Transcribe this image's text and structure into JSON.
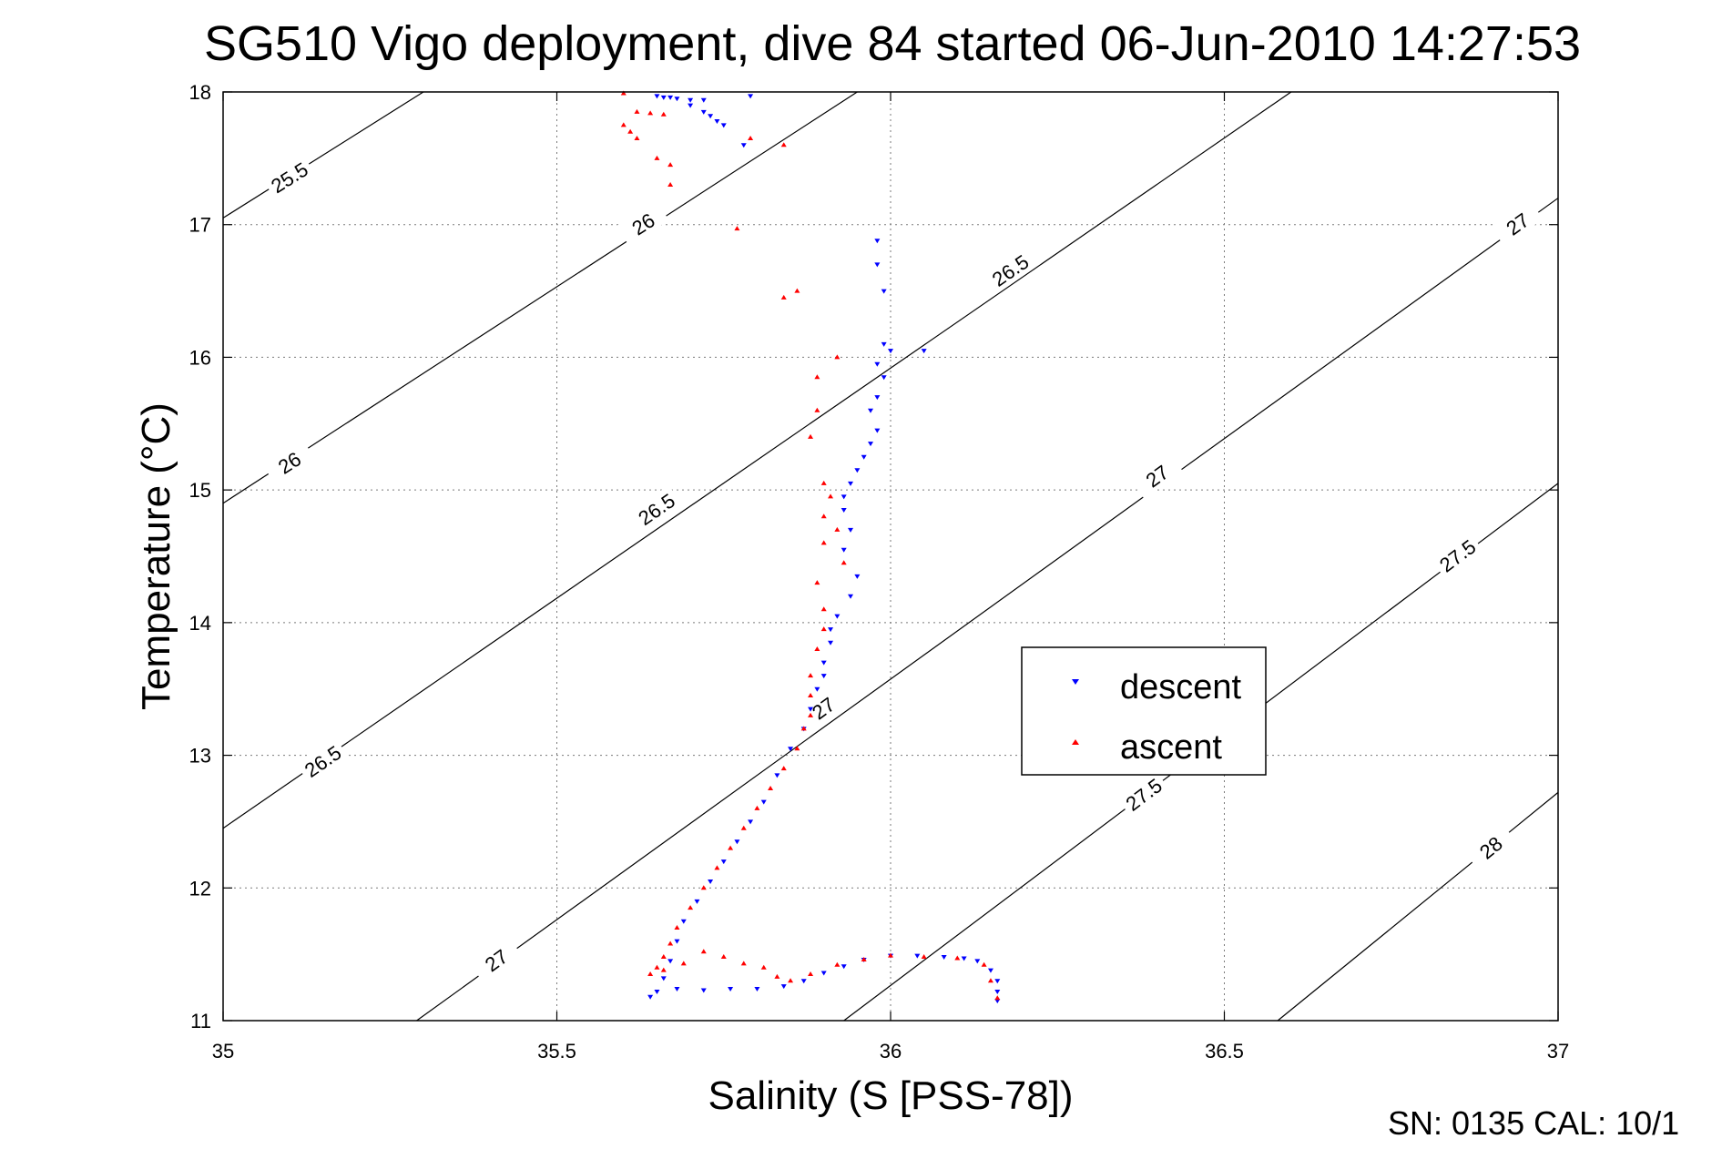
{
  "chart_data": {
    "type": "scatter",
    "title": "SG510 Vigo deployment, dive 84 started 06-Jun-2010 14:27:53",
    "xlabel": "Salinity (S [PSS-78])",
    "ylabel": "Temperature (°C)",
    "xlim": [
      35,
      37
    ],
    "ylim": [
      11,
      18
    ],
    "xticks": [
      "35",
      "35.5",
      "36",
      "36.5",
      "37"
    ],
    "yticks": [
      "11",
      "12",
      "13",
      "14",
      "15",
      "16",
      "17",
      "18"
    ],
    "grid": true,
    "legend_position": "center-right",
    "footer_text": "SN: 0135  CAL: 10/1",
    "isopycnals": [
      {
        "label": "25.5",
        "points": [
          [
            35.0,
            17.05
          ],
          [
            35.3,
            18.0
          ]
        ],
        "label_at": [
          35.1,
          17.35
        ]
      },
      {
        "label": "26",
        "points": [
          [
            35.0,
            14.9
          ],
          [
            35.95,
            18.0
          ]
        ],
        "label_at": [
          35.1,
          15.2
        ]
      },
      {
        "label": "26",
        "points": [
          [
            35.0,
            14.9
          ],
          [
            35.95,
            18.0
          ]
        ],
        "label_at": [
          35.63,
          17.0
        ]
      },
      {
        "label": "26.5",
        "points": [
          [
            35.0,
            12.45
          ],
          [
            36.6,
            18.0
          ]
        ],
        "label_at": [
          35.15,
          12.95
        ]
      },
      {
        "label": "26.5",
        "points": [
          [
            35.0,
            12.45
          ],
          [
            36.6,
            18.0
          ]
        ],
        "label_at": [
          35.65,
          14.85
        ]
      },
      {
        "label": "26.5",
        "points": [
          [
            35.0,
            12.45
          ],
          [
            36.6,
            18.0
          ]
        ],
        "label_at": [
          36.18,
          16.65
        ]
      },
      {
        "label": "27",
        "points": [
          [
            35.29,
            11.0
          ],
          [
            37.0,
            17.2
          ]
        ],
        "label_at": [
          35.41,
          11.45
        ]
      },
      {
        "label": "27",
        "points": [
          [
            35.29,
            11.0
          ],
          [
            37.0,
            17.2
          ]
        ],
        "label_at": [
          35.9,
          13.35
        ]
      },
      {
        "label": "27",
        "points": [
          [
            35.29,
            11.0
          ],
          [
            37.0,
            17.2
          ]
        ],
        "label_at": [
          36.4,
          15.1
        ]
      },
      {
        "label": "27",
        "points": [
          [
            35.29,
            11.0
          ],
          [
            37.0,
            17.2
          ]
        ],
        "label_at": [
          36.94,
          17.0
        ]
      },
      {
        "label": "27.5",
        "points": [
          [
            35.93,
            11.0
          ],
          [
            37.0,
            15.05
          ]
        ],
        "label_at": [
          36.38,
          12.7
        ]
      },
      {
        "label": "27.5",
        "points": [
          [
            35.93,
            11.0
          ],
          [
            37.0,
            15.05
          ]
        ],
        "label_at": [
          36.85,
          14.5
        ]
      },
      {
        "label": "28",
        "points": [
          [
            36.58,
            11.0
          ],
          [
            37.0,
            12.72
          ]
        ],
        "label_at": [
          36.9,
          12.3
        ]
      }
    ],
    "series": [
      {
        "name": "descent",
        "color": "#0000ff",
        "marker": "triangle-down",
        "points": [
          [
            35.65,
            17.97
          ],
          [
            35.66,
            17.96
          ],
          [
            35.67,
            17.96
          ],
          [
            35.68,
            17.95
          ],
          [
            35.7,
            17.94
          ],
          [
            35.72,
            17.94
          ],
          [
            35.79,
            17.97
          ],
          [
            35.7,
            17.9
          ],
          [
            35.72,
            17.85
          ],
          [
            35.73,
            17.82
          ],
          [
            35.74,
            17.78
          ],
          [
            35.75,
            17.75
          ],
          [
            35.78,
            17.6
          ],
          [
            35.98,
            16.88
          ],
          [
            35.98,
            16.7
          ],
          [
            35.99,
            16.5
          ],
          [
            35.99,
            16.1
          ],
          [
            36.0,
            16.05
          ],
          [
            36.05,
            16.05
          ],
          [
            35.98,
            15.95
          ],
          [
            35.99,
            15.85
          ],
          [
            35.98,
            15.7
          ],
          [
            35.97,
            15.6
          ],
          [
            35.98,
            15.45
          ],
          [
            35.97,
            15.35
          ],
          [
            35.96,
            15.25
          ],
          [
            35.95,
            15.15
          ],
          [
            35.94,
            15.05
          ],
          [
            35.93,
            14.95
          ],
          [
            35.93,
            14.85
          ],
          [
            35.94,
            14.7
          ],
          [
            35.93,
            14.55
          ],
          [
            35.95,
            14.35
          ],
          [
            35.94,
            14.2
          ],
          [
            35.92,
            14.05
          ],
          [
            35.91,
            13.95
          ],
          [
            35.91,
            13.85
          ],
          [
            35.9,
            13.7
          ],
          [
            35.9,
            13.6
          ],
          [
            35.89,
            13.5
          ],
          [
            35.88,
            13.35
          ],
          [
            35.87,
            13.2
          ],
          [
            35.85,
            13.05
          ],
          [
            35.83,
            12.85
          ],
          [
            35.81,
            12.65
          ],
          [
            35.79,
            12.5
          ],
          [
            35.77,
            12.35
          ],
          [
            35.75,
            12.2
          ],
          [
            35.73,
            12.05
          ],
          [
            35.71,
            11.9
          ],
          [
            35.69,
            11.75
          ],
          [
            35.68,
            11.6
          ],
          [
            35.67,
            11.45
          ],
          [
            35.66,
            11.32
          ],
          [
            35.65,
            11.22
          ],
          [
            35.64,
            11.18
          ],
          [
            35.68,
            11.24
          ],
          [
            35.72,
            11.23
          ],
          [
            35.76,
            11.24
          ],
          [
            35.8,
            11.24
          ],
          [
            35.84,
            11.26
          ],
          [
            35.87,
            11.3
          ],
          [
            35.9,
            11.36
          ],
          [
            35.93,
            11.41
          ],
          [
            35.96,
            11.46
          ],
          [
            36.0,
            11.49
          ],
          [
            36.04,
            11.49
          ],
          [
            36.08,
            11.48
          ],
          [
            36.11,
            11.47
          ],
          [
            36.13,
            11.45
          ],
          [
            36.15,
            11.38
          ],
          [
            36.16,
            11.3
          ],
          [
            36.16,
            11.22
          ],
          [
            36.16,
            11.15
          ]
        ]
      },
      {
        "name": "ascent",
        "color": "#ff0000",
        "marker": "triangle-up",
        "points": [
          [
            35.6,
            17.99
          ],
          [
            35.62,
            17.85
          ],
          [
            35.64,
            17.84
          ],
          [
            35.66,
            17.83
          ],
          [
            35.6,
            17.75
          ],
          [
            35.61,
            17.7
          ],
          [
            35.62,
            17.65
          ],
          [
            35.65,
            17.5
          ],
          [
            35.67,
            17.45
          ],
          [
            35.67,
            17.3
          ],
          [
            35.79,
            17.65
          ],
          [
            35.84,
            17.6
          ],
          [
            35.77,
            16.97
          ],
          [
            35.84,
            16.45
          ],
          [
            35.86,
            16.5
          ],
          [
            35.92,
            16.0
          ],
          [
            35.89,
            15.85
          ],
          [
            35.89,
            15.6
          ],
          [
            35.88,
            15.4
          ],
          [
            35.9,
            15.05
          ],
          [
            35.91,
            14.95
          ],
          [
            35.9,
            14.8
          ],
          [
            35.92,
            14.7
          ],
          [
            35.9,
            14.6
          ],
          [
            35.93,
            14.45
          ],
          [
            35.89,
            14.3
          ],
          [
            35.9,
            14.1
          ],
          [
            35.9,
            13.95
          ],
          [
            35.89,
            13.8
          ],
          [
            35.88,
            13.6
          ],
          [
            35.88,
            13.45
          ],
          [
            35.88,
            13.3
          ],
          [
            35.87,
            13.2
          ],
          [
            35.86,
            13.05
          ],
          [
            35.84,
            12.9
          ],
          [
            35.82,
            12.75
          ],
          [
            35.8,
            12.6
          ],
          [
            35.78,
            12.45
          ],
          [
            35.76,
            12.3
          ],
          [
            35.74,
            12.15
          ],
          [
            35.72,
            12.0
          ],
          [
            35.7,
            11.85
          ],
          [
            35.68,
            11.7
          ],
          [
            35.67,
            11.58
          ],
          [
            35.66,
            11.48
          ],
          [
            35.65,
            11.4
          ],
          [
            35.64,
            11.35
          ],
          [
            35.66,
            11.38
          ],
          [
            35.69,
            11.43
          ],
          [
            35.72,
            11.52
          ],
          [
            35.75,
            11.48
          ],
          [
            35.78,
            11.43
          ],
          [
            35.81,
            11.4
          ],
          [
            35.83,
            11.33
          ],
          [
            35.85,
            11.3
          ],
          [
            35.88,
            11.35
          ],
          [
            35.92,
            11.42
          ],
          [
            35.96,
            11.46
          ],
          [
            36.0,
            11.49
          ],
          [
            36.05,
            11.48
          ],
          [
            36.1,
            11.47
          ],
          [
            36.14,
            11.42
          ],
          [
            36.15,
            11.3
          ],
          [
            36.16,
            11.17
          ]
        ]
      }
    ]
  }
}
